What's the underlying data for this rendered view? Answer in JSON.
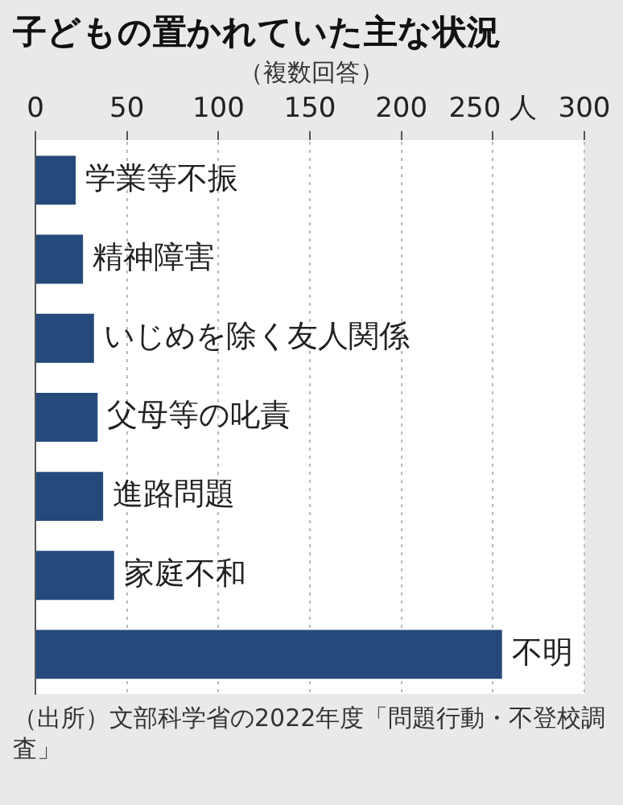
{
  "chart_data": {
    "type": "bar",
    "orientation": "horizontal",
    "title": "子どもの置かれていた主な状況",
    "subtitle": "（複数回答）",
    "categories": [
      "学業等不振",
      "精神障害",
      "いじめを除く友人関係",
      "父母等の叱責",
      "進路問題",
      "家庭不和",
      "不明"
    ],
    "values": [
      22,
      26,
      32,
      34,
      37,
      43,
      255
    ],
    "color": "#24497a",
    "xlim": [
      0,
      300
    ],
    "xticks": [
      0,
      50,
      100,
      150,
      200,
      {
        "value": 250,
        "label": "250 人"
      },
      300
    ],
    "grid": "x",
    "tick_labels": "x",
    "annotations": [
      "（出所）文部科学省の2022年度「問題行動・不登校調査」"
    ]
  }
}
